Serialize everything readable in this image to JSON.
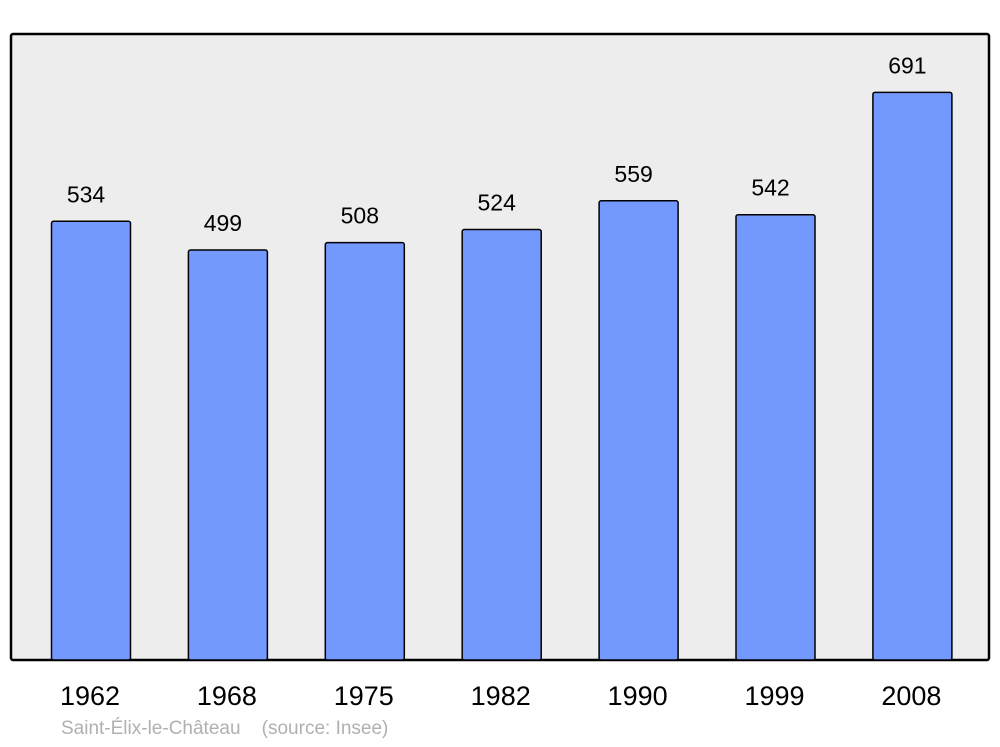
{
  "chart_data": {
    "type": "bar",
    "categories": [
      "1962",
      "1968",
      "1975",
      "1982",
      "1990",
      "1999",
      "2008"
    ],
    "values": [
      534,
      499,
      508,
      524,
      559,
      542,
      691
    ],
    "title": "",
    "xlabel": "",
    "ylabel": "",
    "ylim": [
      0,
      762
    ],
    "grid": false,
    "data_labels": true,
    "colors": {
      "bar": "#7399ff",
      "bar_stroke": "#000000",
      "plot_bg": "#ededed"
    }
  },
  "caption": {
    "place": "Saint-Élix-le-Château",
    "source": "(source: Insee)"
  }
}
